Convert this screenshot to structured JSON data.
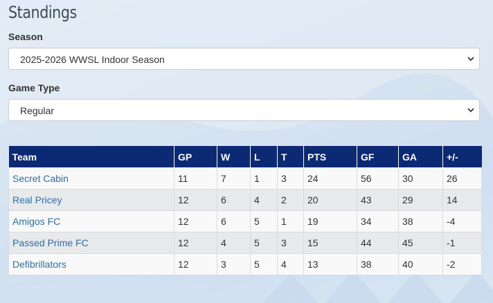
{
  "page": {
    "title": "Standings"
  },
  "season": {
    "label": "Season",
    "selected": "2025-2026 WWSL Indoor Season"
  },
  "game_type": {
    "label": "Game Type",
    "selected": "Regular"
  },
  "table": {
    "headers": [
      "Team",
      "GP",
      "W",
      "L",
      "T",
      "PTS",
      "GF",
      "GA",
      "+/-"
    ],
    "rows": [
      [
        "Secret Cabin",
        "11",
        "7",
        "1",
        "3",
        "24",
        "56",
        "30",
        "26"
      ],
      [
        "Real Pricey",
        "12",
        "6",
        "4",
        "2",
        "20",
        "43",
        "29",
        "14"
      ],
      [
        "Amigos FC",
        "12",
        "6",
        "5",
        "1",
        "19",
        "34",
        "38",
        "-4"
      ],
      [
        "Passed Prime FC",
        "12",
        "4",
        "5",
        "3",
        "15",
        "44",
        "45",
        "-1"
      ],
      [
        "Defibrillators",
        "12",
        "3",
        "5",
        "4",
        "13",
        "38",
        "40",
        "-2"
      ]
    ]
  },
  "colors": {
    "header_bg": "#0c2a73",
    "link": "#2a6fad",
    "row_odd": "#f9f9f9",
    "row_even": "#e8e9eb"
  },
  "icons": {
    "select_chevron": "chevron-down-icon"
  }
}
